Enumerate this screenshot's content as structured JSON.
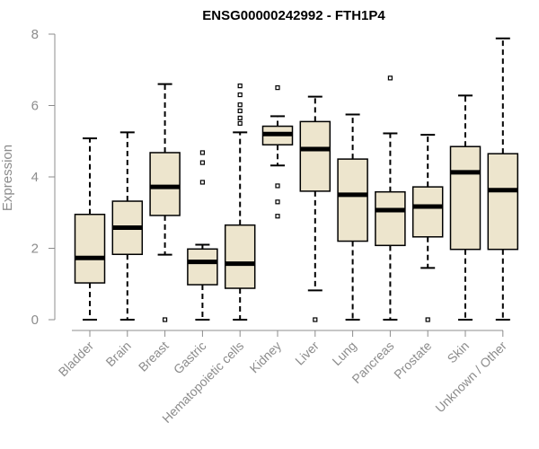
{
  "chart_data": {
    "type": "boxplot",
    "title": "ENSG00000242992 - FTH1P4",
    "xlabel": "",
    "ylabel": "Expression",
    "ylim": [
      0,
      8
    ],
    "yticks": [
      0,
      2,
      4,
      6,
      8
    ],
    "grid": false,
    "box_color": "#ede5cd",
    "categories": [
      "Bladder",
      "Brain",
      "Breast",
      "Gastric",
      "Hematopoietic cells",
      "Kidney",
      "Liver",
      "Lung",
      "Pancreas",
      "Prostate",
      "Skin",
      "Unknown / Other"
    ],
    "boxes": [
      {
        "name": "Bladder",
        "min": 0.0,
        "q1": 1.03,
        "median": 1.73,
        "q3": 2.95,
        "max": 5.08,
        "outliers": []
      },
      {
        "name": "Brain",
        "min": 0.0,
        "q1": 1.83,
        "median": 2.58,
        "q3": 3.32,
        "max": 5.25,
        "outliers": []
      },
      {
        "name": "Breast",
        "min": 1.82,
        "q1": 2.92,
        "median": 3.72,
        "q3": 4.68,
        "max": 6.6,
        "outliers": [
          0.0
        ]
      },
      {
        "name": "Gastric",
        "min": 0.0,
        "q1": 0.98,
        "median": 1.62,
        "q3": 1.98,
        "max": 2.1,
        "outliers": [
          3.85,
          4.4,
          4.68
        ]
      },
      {
        "name": "Hematopoietic cells",
        "min": 0.0,
        "q1": 0.88,
        "median": 1.57,
        "q3": 2.65,
        "max": 5.25,
        "outliers": [
          5.5,
          5.65,
          5.85,
          6.02,
          6.3,
          6.55
        ]
      },
      {
        "name": "Kidney",
        "min": 4.32,
        "q1": 4.9,
        "median": 5.2,
        "q3": 5.42,
        "max": 5.7,
        "outliers": [
          2.9,
          3.3,
          3.75,
          6.5
        ]
      },
      {
        "name": "Liver",
        "min": 0.82,
        "q1": 3.6,
        "median": 4.78,
        "q3": 5.55,
        "max": 6.25,
        "outliers": [
          0.0
        ]
      },
      {
        "name": "Lung",
        "min": 0.0,
        "q1": 2.2,
        "median": 3.5,
        "q3": 4.5,
        "max": 5.75,
        "outliers": []
      },
      {
        "name": "Pancreas",
        "min": 0.0,
        "q1": 2.08,
        "median": 3.07,
        "q3": 3.58,
        "max": 5.22,
        "outliers": [
          6.77
        ]
      },
      {
        "name": "Prostate",
        "min": 1.45,
        "q1": 2.32,
        "median": 3.17,
        "q3": 3.72,
        "max": 5.18,
        "outliers": [
          0.0
        ]
      },
      {
        "name": "Skin",
        "min": 0.0,
        "q1": 1.97,
        "median": 4.13,
        "q3": 4.85,
        "max": 6.28,
        "outliers": []
      },
      {
        "name": "Unknown / Other",
        "min": 0.0,
        "q1": 1.97,
        "median": 3.63,
        "q3": 4.65,
        "max": 7.88,
        "outliers": []
      }
    ]
  }
}
